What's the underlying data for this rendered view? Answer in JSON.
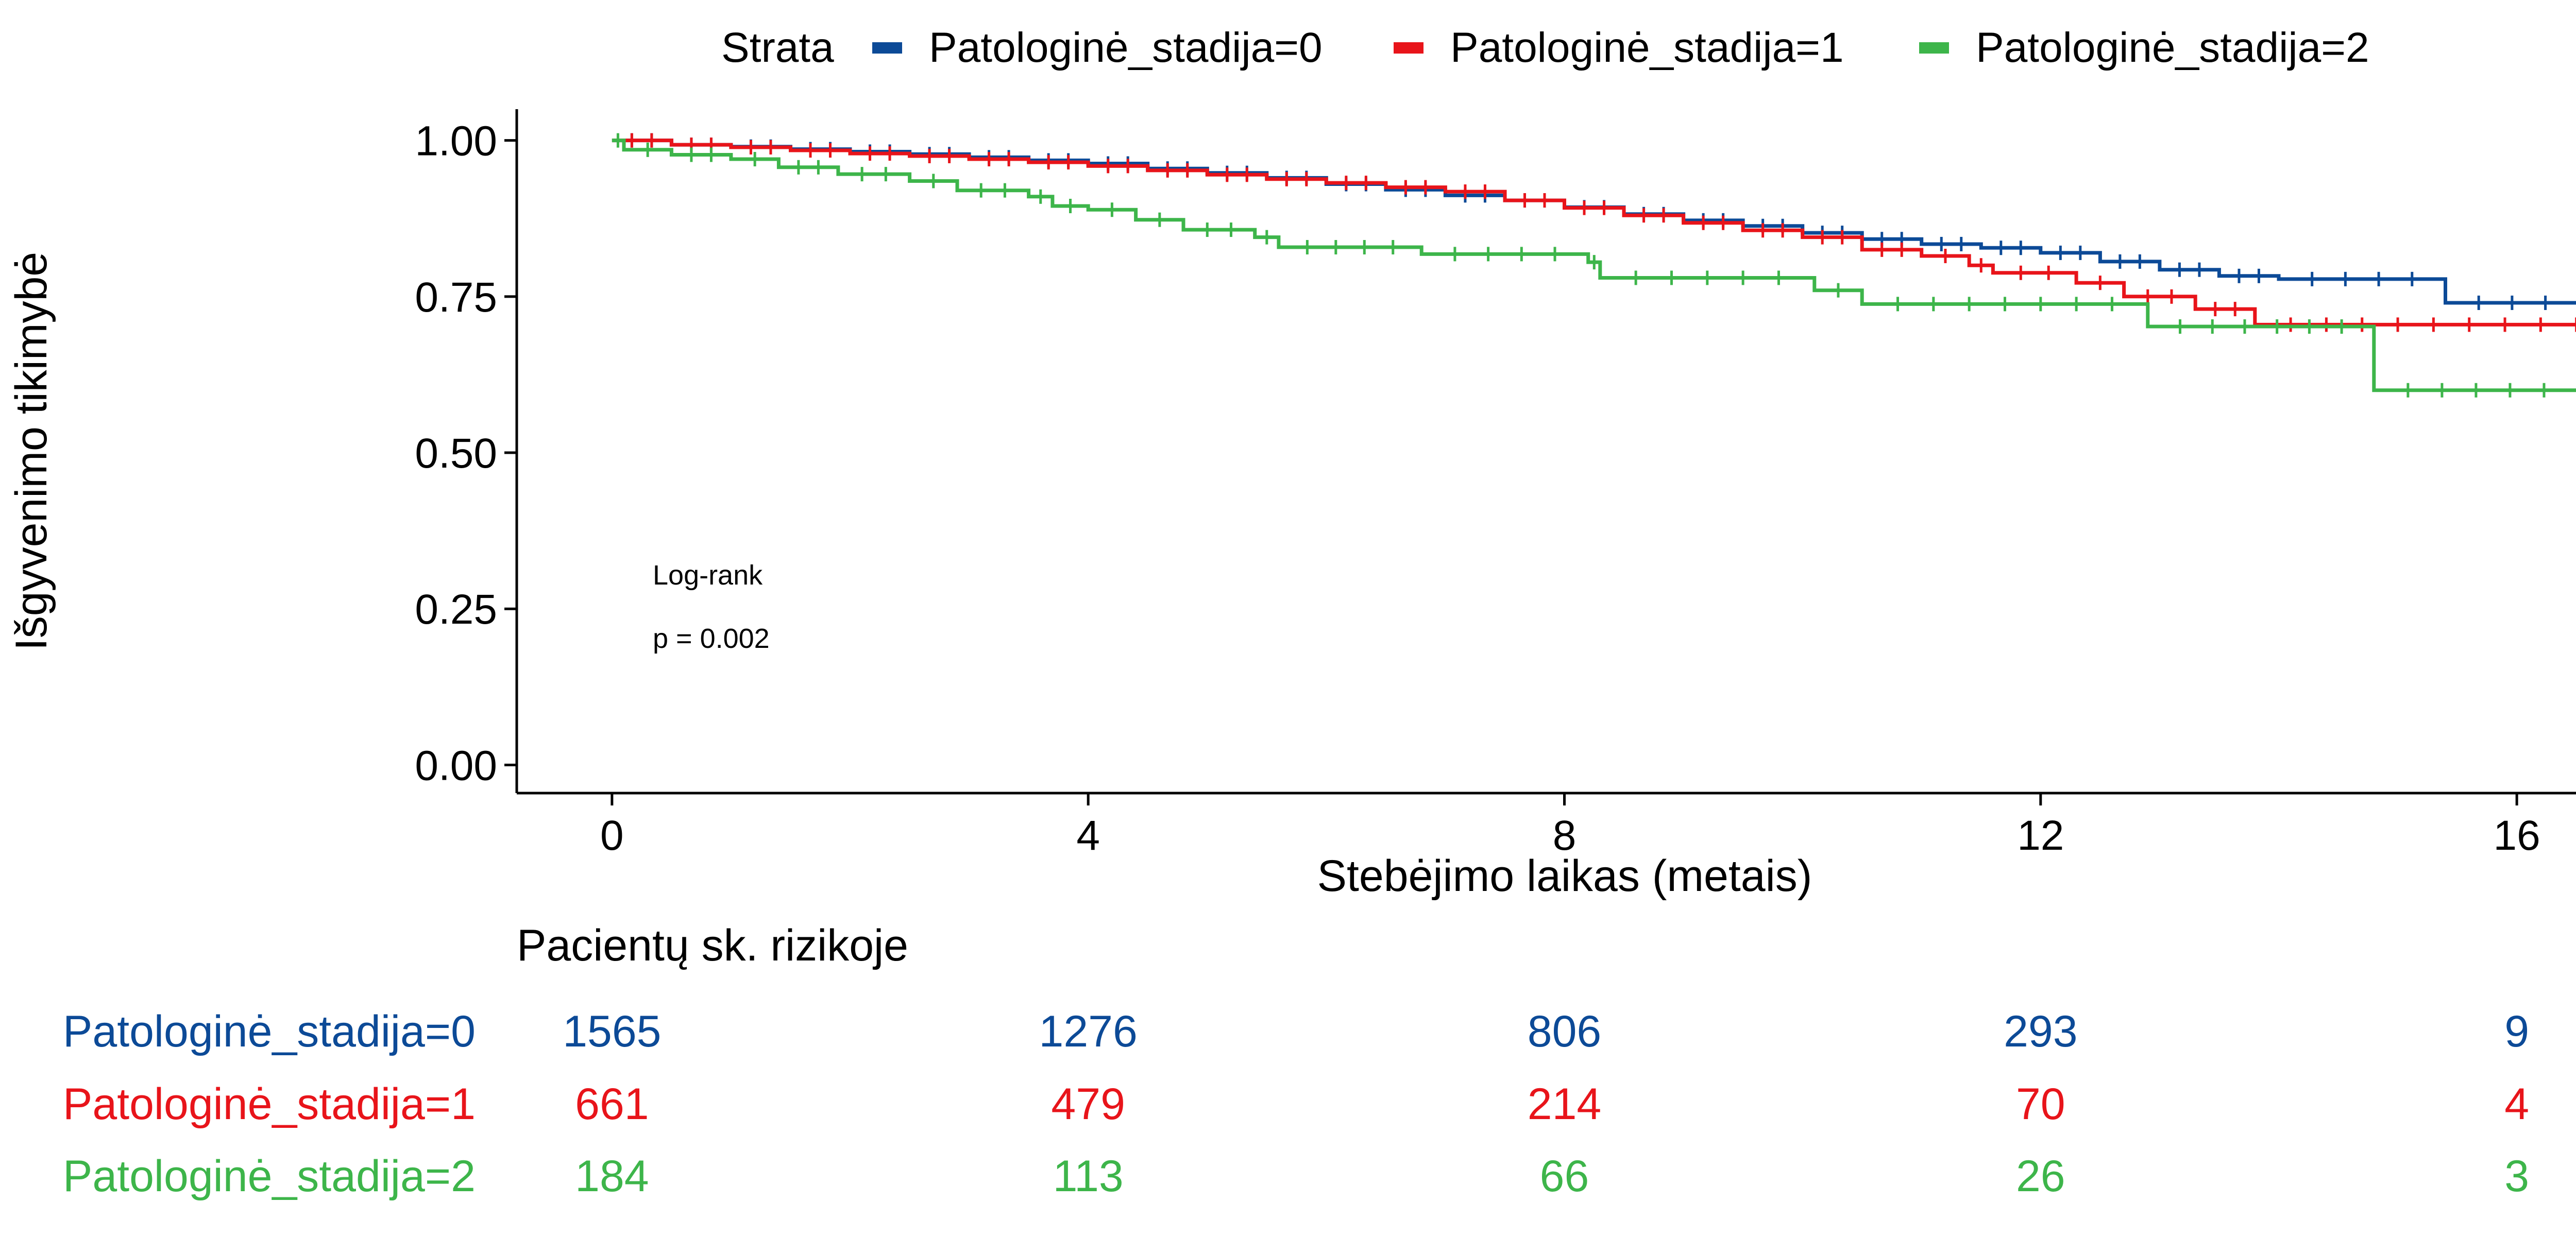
{
  "chart_data": {
    "type": "line",
    "subtype": "step",
    "xlabel": "Stebėjimo laikas (metais)",
    "ylabel": "Išgyvenimo tikimybė",
    "xlim": [
      -0.8,
      16.8
    ],
    "ylim": [
      -0.045,
      1.05
    ],
    "xticks": [
      0,
      4,
      8,
      12,
      16
    ],
    "yticks": [
      0.0,
      0.25,
      0.5,
      0.75,
      1.0
    ],
    "ytick_labels": [
      "0.00",
      "0.25",
      "0.50",
      "0.75",
      "1.00"
    ],
    "grid": false,
    "legend": {
      "title": "Strata",
      "position": "top",
      "entries": [
        "Patologinė_stadija=0",
        "Patologinė_stadija=1",
        "Patologinė_stadija=2"
      ]
    },
    "annotation": {
      "line1": "Log-rank",
      "line2": "p = 0.002"
    },
    "series": [
      {
        "name": "Patologinė_stadija=0",
        "color": "#0C4A97",
        "x": [
          0,
          0.5,
          1.0,
          1.5,
          2.0,
          2.5,
          3.0,
          3.5,
          4.0,
          4.5,
          5.0,
          5.5,
          6.0,
          6.5,
          7.0,
          7.5,
          8.0,
          8.5,
          9.0,
          9.5,
          10.0,
          10.5,
          11.0,
          11.5,
          12.0,
          12.5,
          13.0,
          13.5,
          14.0,
          15.4,
          16.8
        ],
        "y": [
          1.0,
          0.993,
          0.99,
          0.986,
          0.982,
          0.978,
          0.973,
          0.968,
          0.963,
          0.955,
          0.948,
          0.94,
          0.93,
          0.921,
          0.912,
          0.904,
          0.893,
          0.882,
          0.872,
          0.863,
          0.852,
          0.842,
          0.834,
          0.828,
          0.82,
          0.806,
          0.793,
          0.783,
          0.778,
          0.74,
          0.74
        ]
      },
      {
        "name": "Patologinė_stadija=1",
        "color": "#E8141A",
        "x": [
          0,
          0.5,
          1.0,
          1.5,
          2.0,
          2.5,
          3.0,
          3.5,
          4.0,
          4.5,
          5.0,
          5.5,
          6.0,
          6.5,
          7.0,
          7.5,
          8.0,
          8.5,
          9.0,
          9.5,
          10.0,
          10.5,
          11.0,
          11.4,
          11.6,
          12.3,
          12.7,
          13.3,
          13.8,
          16.8
        ],
        "y": [
          1.0,
          0.993,
          0.989,
          0.984,
          0.979,
          0.975,
          0.97,
          0.965,
          0.959,
          0.952,
          0.945,
          0.938,
          0.932,
          0.925,
          0.918,
          0.904,
          0.892,
          0.88,
          0.868,
          0.856,
          0.845,
          0.825,
          0.815,
          0.8,
          0.788,
          0.772,
          0.75,
          0.73,
          0.705,
          0.705
        ]
      },
      {
        "name": "Patologinė_stadija=2",
        "color": "#3DB54A",
        "x": [
          0,
          0.1,
          0.5,
          1.0,
          1.4,
          1.9,
          2.5,
          2.9,
          3.5,
          3.7,
          4.0,
          4.4,
          4.8,
          5.4,
          5.6,
          6.8,
          8.2,
          8.3,
          10.1,
          10.5,
          12.9,
          14.8,
          16.8
        ],
        "y": [
          1.0,
          0.985,
          0.977,
          0.97,
          0.957,
          0.946,
          0.935,
          0.92,
          0.91,
          0.895,
          0.889,
          0.873,
          0.857,
          0.845,
          0.829,
          0.818,
          0.805,
          0.78,
          0.76,
          0.738,
          0.702,
          0.6,
          0.6
        ]
      }
    ],
    "risk_table": {
      "title": "Pacientų sk. rizikoje",
      "time_points": [
        0,
        4,
        8,
        12,
        16
      ],
      "rows": [
        {
          "name": "Patologinė_stadija=0",
          "color": "#0C4A97",
          "values": [
            "1565",
            "1276",
            "806",
            "293",
            "9"
          ]
        },
        {
          "name": "Patologinė_stadija=1",
          "color": "#E8141A",
          "values": [
            "661",
            "479",
            "214",
            "70",
            "4"
          ]
        },
        {
          "name": "Patologinė_stadija=2",
          "color": "#3DB54A",
          "values": [
            "184",
            "113",
            "66",
            "26",
            "3"
          ]
        }
      ]
    }
  }
}
